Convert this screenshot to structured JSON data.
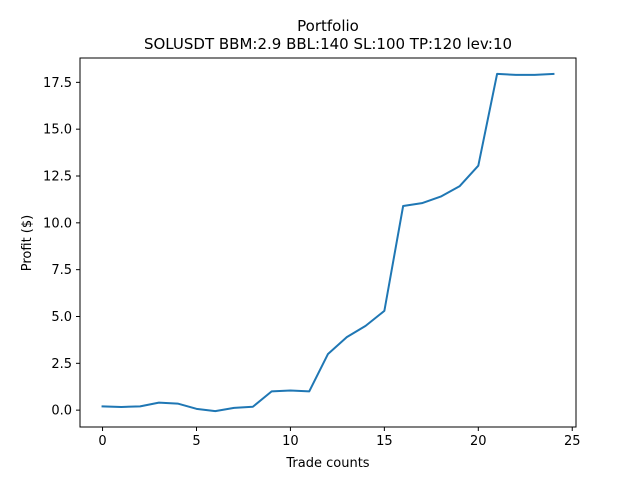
{
  "chart_data": {
    "type": "line",
    "title": "Portfolio",
    "subtitle": "SOLUSDT BBM:2.9 BBL:140 SL:100 TP:120 lev:10",
    "xlabel": "Trade counts",
    "ylabel": "Profit ($)",
    "xlim": [
      -1.2,
      25.2
    ],
    "ylim": [
      -0.9,
      18.8
    ],
    "xticks": [
      0,
      5,
      10,
      15,
      20,
      25
    ],
    "xtick_labels": [
      "0",
      "5",
      "10",
      "15",
      "20",
      "25"
    ],
    "yticks": [
      0,
      2.5,
      5,
      7.5,
      10,
      12.5,
      15,
      17.5
    ],
    "ytick_labels": [
      "0.0",
      "2.5",
      "5.0",
      "7.5",
      "10.0",
      "12.5",
      "15.0",
      "17.5"
    ],
    "grid": false,
    "series": [
      {
        "name": "Portfolio",
        "color": "#1f77b4",
        "x": [
          0,
          1,
          2,
          3,
          4,
          5,
          6,
          7,
          8,
          9,
          10,
          11,
          12,
          13,
          14,
          15,
          16,
          17,
          18,
          19,
          20,
          21,
          22,
          23,
          24
        ],
        "y": [
          0.2,
          0.17,
          0.2,
          0.4,
          0.35,
          0.07,
          -0.05,
          0.12,
          0.18,
          1.0,
          1.05,
          1.0,
          3.0,
          3.9,
          4.5,
          5.3,
          10.9,
          11.05,
          11.4,
          11.95,
          13.05,
          17.95,
          17.9,
          17.9,
          17.95
        ]
      }
    ]
  }
}
